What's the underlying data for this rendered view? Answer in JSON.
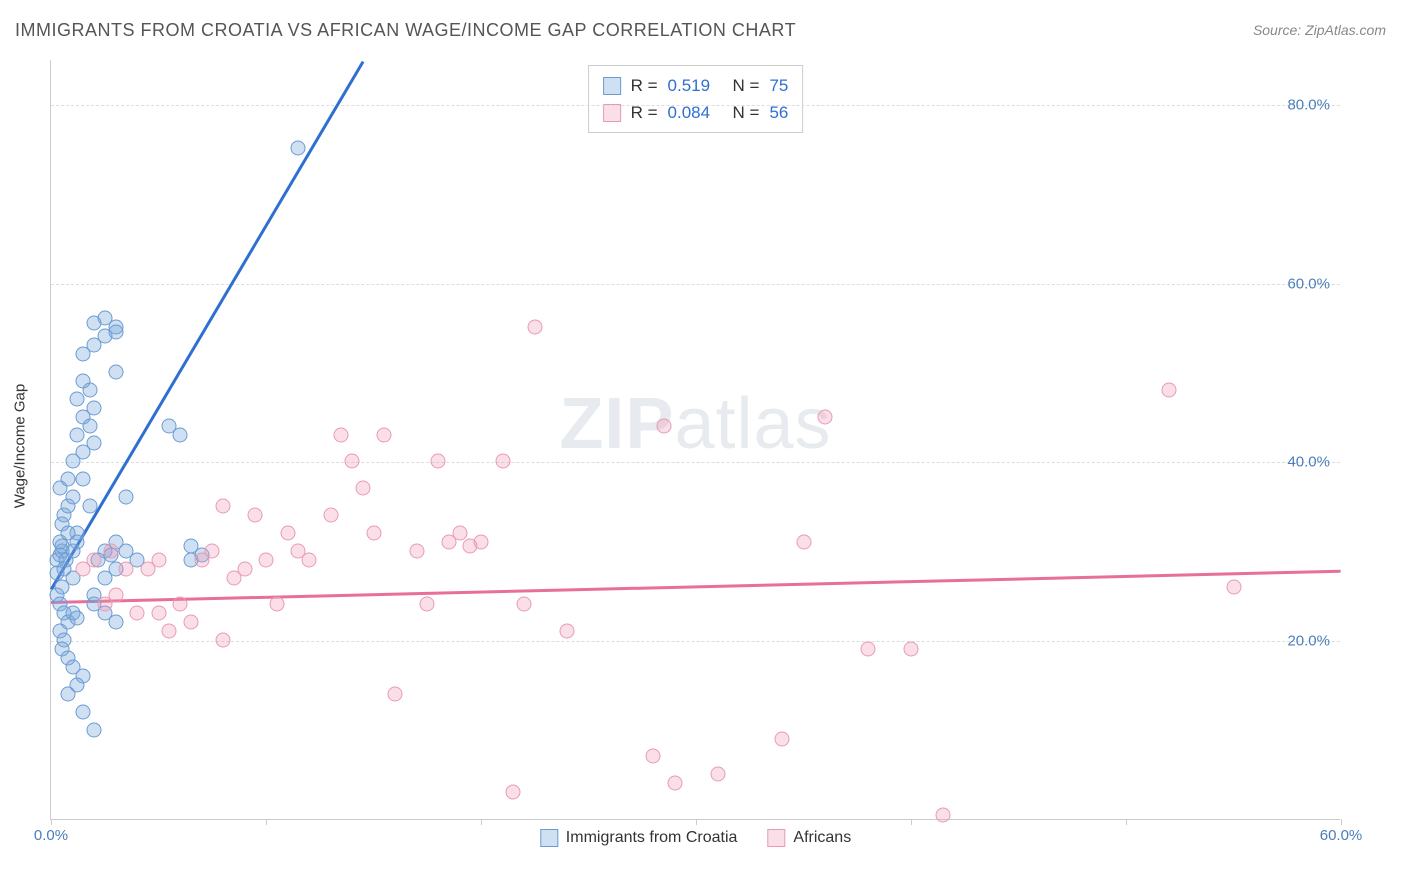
{
  "title": "IMMIGRANTS FROM CROATIA VS AFRICAN WAGE/INCOME GAP CORRELATION CHART",
  "source_label": "Source: ",
  "source_value": "ZipAtlas.com",
  "watermark": "ZIPatlas",
  "yaxis_title": "Wage/Income Gap",
  "chart": {
    "type": "scatter",
    "xlim": [
      0,
      60
    ],
    "ylim": [
      0,
      85
    ],
    "y_ticks": [
      20,
      40,
      60,
      80
    ],
    "y_tick_labels": [
      "20.0%",
      "40.0%",
      "60.0%",
      "80.0%"
    ],
    "y_tick_color": "#4a7ebb",
    "x_ticks": [
      0,
      10,
      20,
      30,
      40,
      50,
      60
    ],
    "x_visible_labels": {
      "0": "0.0%",
      "60": "60.0%"
    },
    "x_tick_color": "#4a7ebb",
    "grid_color": "#dddddd",
    "axis_color": "#cccccc",
    "background": "#ffffff",
    "marker_size": 15,
    "marker_border_width": 1
  },
  "series": [
    {
      "name": "Immigrants from Croatia",
      "fill_color": "rgba(120,165,220,0.35)",
      "stroke_color": "#6b9bd1",
      "line_color": "#2e6fd1",
      "line_width": 2.5,
      "R": "0.519",
      "N": "75",
      "trend": {
        "x1": 0,
        "y1": 26,
        "x2": 14.5,
        "y2": 85
      },
      "points": [
        [
          0.3,
          29
        ],
        [
          0.4,
          29.5
        ],
        [
          0.5,
          30
        ],
        [
          0.6,
          28
        ],
        [
          0.3,
          27.5
        ],
        [
          0.5,
          30.5
        ],
        [
          0.4,
          31
        ],
        [
          0.7,
          29
        ],
        [
          0.3,
          25
        ],
        [
          0.5,
          26
        ],
        [
          0.4,
          24
        ],
        [
          0.6,
          23
        ],
        [
          0.8,
          22
        ],
        [
          1.0,
          23
        ],
        [
          1.2,
          22.5
        ],
        [
          0.4,
          21
        ],
        [
          0.6,
          20
        ],
        [
          0.5,
          19
        ],
        [
          0.8,
          18
        ],
        [
          1.0,
          17
        ],
        [
          1.5,
          16
        ],
        [
          1.2,
          15
        ],
        [
          0.8,
          14
        ],
        [
          1.5,
          12
        ],
        [
          2.0,
          10
        ],
        [
          0.5,
          33
        ],
        [
          0.6,
          34
        ],
        [
          0.8,
          35
        ],
        [
          1.0,
          36
        ],
        [
          1.2,
          32
        ],
        [
          0.4,
          37
        ],
        [
          0.8,
          38
        ],
        [
          1.0,
          40
        ],
        [
          1.5,
          41
        ],
        [
          2.0,
          42
        ],
        [
          1.2,
          43
        ],
        [
          1.8,
          44
        ],
        [
          1.5,
          45
        ],
        [
          2.0,
          46
        ],
        [
          1.2,
          47
        ],
        [
          1.8,
          48
        ],
        [
          1.5,
          49
        ],
        [
          3.0,
          50
        ],
        [
          1.5,
          52
        ],
        [
          2.0,
          53
        ],
        [
          2.5,
          54
        ],
        [
          3.0,
          55
        ],
        [
          2.5,
          56
        ],
        [
          2.0,
          55.5
        ],
        [
          3.0,
          54.5
        ],
        [
          2.2,
          29
        ],
        [
          2.5,
          30
        ],
        [
          3.0,
          28
        ],
        [
          2.8,
          29.5
        ],
        [
          2.5,
          27
        ],
        [
          3.5,
          36
        ],
        [
          3.0,
          31
        ],
        [
          3.5,
          30
        ],
        [
          4.0,
          29
        ],
        [
          2.0,
          24
        ],
        [
          2.5,
          23
        ],
        [
          3.0,
          22
        ],
        [
          2.0,
          25
        ],
        [
          1.0,
          30
        ],
        [
          1.2,
          31
        ],
        [
          0.8,
          32
        ],
        [
          1.8,
          35
        ],
        [
          1.5,
          38
        ],
        [
          5.5,
          44
        ],
        [
          6.0,
          43
        ],
        [
          6.5,
          29
        ],
        [
          7.0,
          29.5
        ],
        [
          6.5,
          30.5
        ],
        [
          11.5,
          75
        ],
        [
          1.0,
          27
        ]
      ]
    },
    {
      "name": "Africans",
      "fill_color": "rgba(240,150,180,0.30)",
      "stroke_color": "#e89ab5",
      "line_color": "#e86f9a",
      "line_width": 2.5,
      "R": "0.084",
      "N": "56",
      "trend": {
        "x1": 0,
        "y1": 24.5,
        "x2": 60,
        "y2": 28
      },
      "points": [
        [
          1.5,
          28
        ],
        [
          2.0,
          29
        ],
        [
          2.5,
          24
        ],
        [
          3.0,
          25
        ],
        [
          2.8,
          30
        ],
        [
          4.0,
          23
        ],
        [
          4.5,
          28
        ],
        [
          5.0,
          29
        ],
        [
          5.5,
          21
        ],
        [
          6.0,
          24
        ],
        [
          6.5,
          22
        ],
        [
          7.0,
          29
        ],
        [
          7.5,
          30
        ],
        [
          8.0,
          20
        ],
        [
          8.5,
          27
        ],
        [
          9.0,
          28
        ],
        [
          9.5,
          34
        ],
        [
          10.0,
          29
        ],
        [
          10.5,
          24
        ],
        [
          11.0,
          32
        ],
        [
          13.0,
          34
        ],
        [
          14.0,
          40
        ],
        [
          14.5,
          37
        ],
        [
          15.0,
          32
        ],
        [
          15.5,
          43
        ],
        [
          16.0,
          14
        ],
        [
          17.0,
          30
        ],
        [
          17.5,
          24
        ],
        [
          18.0,
          40
        ],
        [
          19.0,
          32
        ],
        [
          19.5,
          30.5
        ],
        [
          20.0,
          31
        ],
        [
          21.0,
          40
        ],
        [
          22.0,
          24
        ],
        [
          22.5,
          55
        ],
        [
          24.0,
          21
        ],
        [
          21.5,
          3
        ],
        [
          28.5,
          44
        ],
        [
          28.0,
          7
        ],
        [
          29.0,
          4
        ],
        [
          31.0,
          5
        ],
        [
          34.0,
          9
        ],
        [
          35.0,
          31
        ],
        [
          36.0,
          45
        ],
        [
          38.0,
          19
        ],
        [
          40.0,
          19
        ],
        [
          41.5,
          0.5
        ],
        [
          52.0,
          48
        ],
        [
          55.0,
          26
        ],
        [
          12.0,
          29
        ],
        [
          13.5,
          43
        ],
        [
          3.5,
          28
        ],
        [
          5.0,
          23
        ],
        [
          8.0,
          35
        ],
        [
          18.5,
          31
        ],
        [
          11.5,
          30
        ]
      ]
    }
  ],
  "legend_top": [
    {
      "series_index": 0,
      "R_label": "R =",
      "N_label": "N ="
    },
    {
      "series_index": 1,
      "R_label": "R =",
      "N_label": "N ="
    }
  ]
}
